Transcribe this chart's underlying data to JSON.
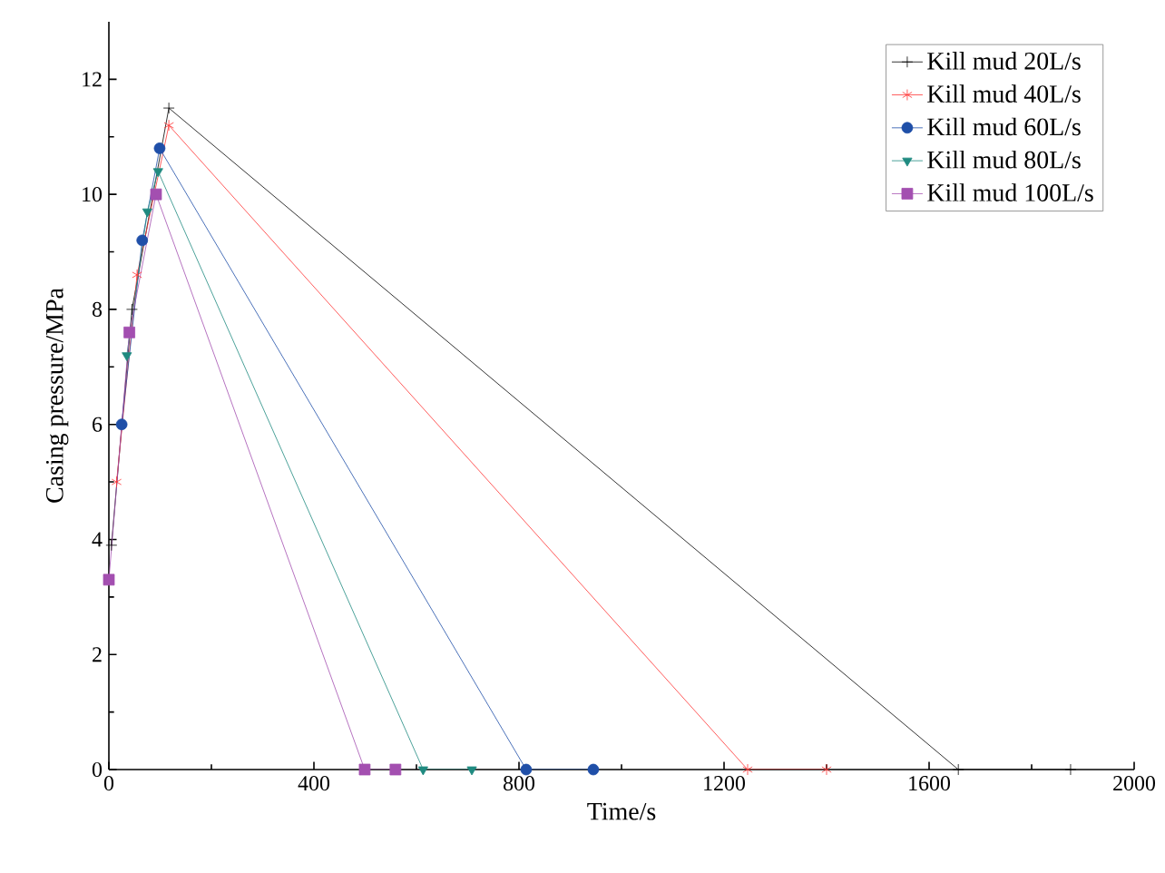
{
  "chart_data": {
    "type": "line",
    "xlabel": "Time/s",
    "ylabel": "Casing pressure/MPa",
    "xlim": [
      0,
      2000
    ],
    "ylim": [
      0,
      13
    ],
    "xticks": [
      0,
      400,
      800,
      1200,
      1600,
      2000
    ],
    "yticks": [
      0,
      2,
      4,
      6,
      8,
      10,
      12
    ],
    "grid": false,
    "legend": "top right",
    "line_style": "solid",
    "series": [
      {
        "name": "Kill mud 20L/s",
        "color": "#000000",
        "marker": "cross",
        "x": [
          5,
          45,
          117,
          1657,
          1876
        ],
        "values": [
          3.9,
          8.0,
          11.5,
          0,
          0
        ]
      },
      {
        "name": "Kill mud 40L/s",
        "color": "#ff3333",
        "marker": "cross",
        "x": [
          15,
          55,
          117,
          1246,
          1400
        ],
        "values": [
          5.0,
          8.6,
          11.2,
          0,
          0
        ]
      },
      {
        "name": "Kill mud 60L/s",
        "color": "#1f4fa8",
        "marker": "circle",
        "x": [
          25,
          65,
          99,
          814,
          945
        ],
        "values": [
          6.0,
          9.2,
          10.8,
          0,
          0
        ]
      },
      {
        "name": "Kill mud 80L/s",
        "color": "#1f8a80",
        "marker": "triangle",
        "x": [
          35,
          75,
          96,
          613,
          708
        ],
        "values": [
          7.2,
          9.7,
          10.4,
          0,
          0
        ]
      },
      {
        "name": "Kill mud 100L/s",
        "color": "#a34fb0",
        "marker": "square",
        "x": [
          0,
          40,
          92,
          499,
          559
        ],
        "values": [
          3.3,
          7.6,
          10.0,
          0,
          0
        ]
      }
    ]
  }
}
